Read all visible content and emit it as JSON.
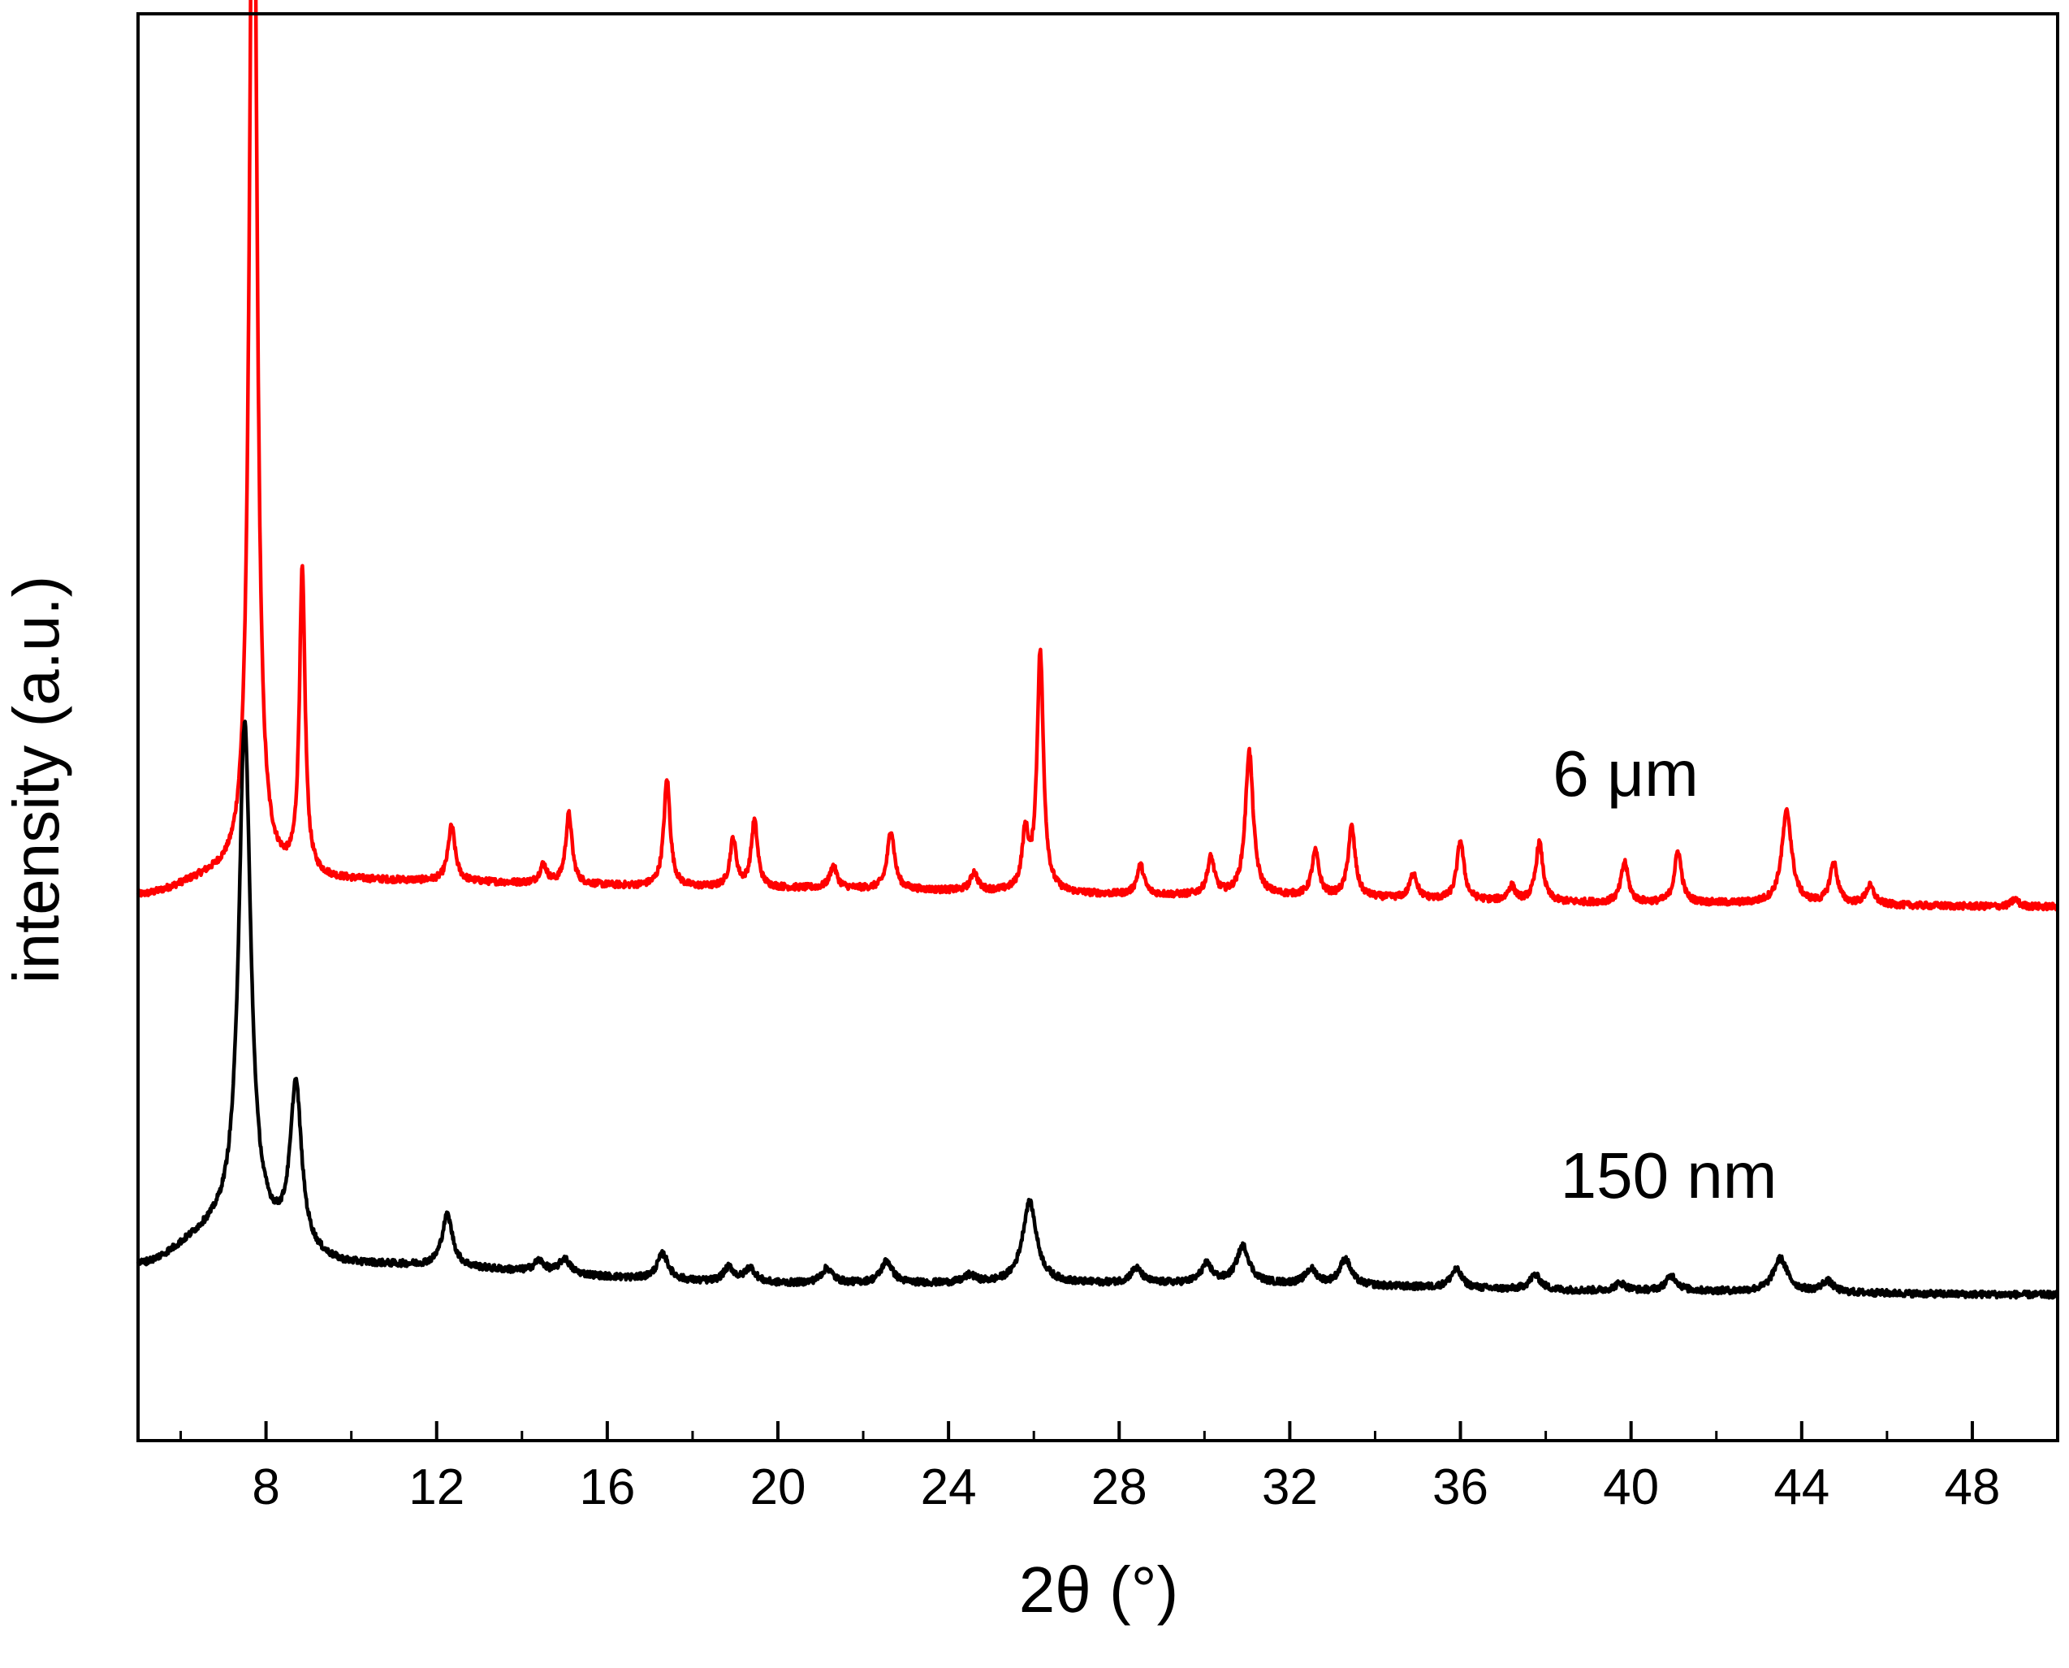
{
  "chart_data": {
    "type": "line",
    "title": "",
    "xlabel": "2θ (°)",
    "ylabel": "intensity (a.u.)",
    "xlim": [
      5,
      50
    ],
    "x_ticks": [
      8,
      12,
      16,
      20,
      24,
      28,
      32,
      36,
      40,
      44,
      48
    ],
    "y_ticks": [],
    "grid": false,
    "legend": "none",
    "annotations": [
      {
        "text": "6 μm",
        "series": "6 μm"
      },
      {
        "text": "150 nm",
        "series": "150 nm"
      }
    ],
    "series": [
      {
        "name": "6 μm",
        "color": "#ff0000",
        "offset": 1.0,
        "baseline": [
          [
            5,
            0.0
          ],
          [
            7,
            0.05
          ],
          [
            10,
            0.04
          ],
          [
            20,
            0.02
          ],
          [
            30,
            0.0
          ],
          [
            40,
            -0.02
          ],
          [
            50,
            -0.03
          ]
        ],
        "peaks": [
          {
            "x": 7.7,
            "h": 3.28,
            "w": 0.1
          },
          {
            "x": 8.85,
            "h": 0.82,
            "w": 0.08
          },
          {
            "x": 12.35,
            "h": 0.15,
            "w": 0.1
          },
          {
            "x": 14.5,
            "h": 0.05,
            "w": 0.1
          },
          {
            "x": 15.1,
            "h": 0.19,
            "w": 0.09
          },
          {
            "x": 17.4,
            "h": 0.29,
            "w": 0.09
          },
          {
            "x": 18.95,
            "h": 0.13,
            "w": 0.09
          },
          {
            "x": 19.45,
            "h": 0.18,
            "w": 0.09
          },
          {
            "x": 21.3,
            "h": 0.06,
            "w": 0.1
          },
          {
            "x": 22.65,
            "h": 0.16,
            "w": 0.1
          },
          {
            "x": 24.6,
            "h": 0.05,
            "w": 0.1
          },
          {
            "x": 25.8,
            "h": 0.15,
            "w": 0.09
          },
          {
            "x": 26.15,
            "h": 0.65,
            "w": 0.09
          },
          {
            "x": 28.5,
            "h": 0.08,
            "w": 0.1
          },
          {
            "x": 30.15,
            "h": 0.1,
            "w": 0.1
          },
          {
            "x": 31.05,
            "h": 0.39,
            "w": 0.11
          },
          {
            "x": 32.6,
            "h": 0.12,
            "w": 0.1
          },
          {
            "x": 33.45,
            "h": 0.19,
            "w": 0.1
          },
          {
            "x": 34.9,
            "h": 0.07,
            "w": 0.1
          },
          {
            "x": 36.0,
            "h": 0.16,
            "w": 0.1
          },
          {
            "x": 37.2,
            "h": 0.04,
            "w": 0.1
          },
          {
            "x": 37.85,
            "h": 0.16,
            "w": 0.1
          },
          {
            "x": 39.85,
            "h": 0.11,
            "w": 0.1
          },
          {
            "x": 41.1,
            "h": 0.14,
            "w": 0.1
          },
          {
            "x": 43.65,
            "h": 0.25,
            "w": 0.14
          },
          {
            "x": 44.75,
            "h": 0.11,
            "w": 0.11
          },
          {
            "x": 45.6,
            "h": 0.05,
            "w": 0.12
          },
          {
            "x": 49.0,
            "h": 0.02,
            "w": 0.1
          }
        ]
      },
      {
        "name": "150 nm",
        "color": "#000000",
        "offset": 0.0,
        "baseline": [
          [
            5,
            0.0
          ],
          [
            7,
            0.09
          ],
          [
            10,
            0.0
          ],
          [
            20,
            -0.05
          ],
          [
            30,
            -0.05
          ],
          [
            40,
            -0.07
          ],
          [
            50,
            -0.08
          ]
        ],
        "peaks": [
          {
            "x": 7.5,
            "h": 1.38,
            "w": 0.17
          },
          {
            "x": 8.7,
            "h": 0.44,
            "w": 0.16
          },
          {
            "x": 12.25,
            "h": 0.14,
            "w": 0.15
          },
          {
            "x": 14.4,
            "h": 0.03,
            "w": 0.15
          },
          {
            "x": 15.0,
            "h": 0.04,
            "w": 0.15
          },
          {
            "x": 17.3,
            "h": 0.07,
            "w": 0.16
          },
          {
            "x": 18.85,
            "h": 0.04,
            "w": 0.15
          },
          {
            "x": 19.35,
            "h": 0.04,
            "w": 0.15
          },
          {
            "x": 21.15,
            "h": 0.04,
            "w": 0.16
          },
          {
            "x": 22.55,
            "h": 0.06,
            "w": 0.16
          },
          {
            "x": 24.5,
            "h": 0.02,
            "w": 0.16
          },
          {
            "x": 25.9,
            "h": 0.22,
            "w": 0.2
          },
          {
            "x": 28.4,
            "h": 0.04,
            "w": 0.16
          },
          {
            "x": 30.05,
            "h": 0.05,
            "w": 0.16
          },
          {
            "x": 30.9,
            "h": 0.1,
            "w": 0.18
          },
          {
            "x": 32.5,
            "h": 0.04,
            "w": 0.16
          },
          {
            "x": 33.3,
            "h": 0.07,
            "w": 0.16
          },
          {
            "x": 35.9,
            "h": 0.05,
            "w": 0.16
          },
          {
            "x": 37.75,
            "h": 0.04,
            "w": 0.16
          },
          {
            "x": 39.75,
            "h": 0.02,
            "w": 0.16
          },
          {
            "x": 40.95,
            "h": 0.04,
            "w": 0.16
          },
          {
            "x": 43.5,
            "h": 0.09,
            "w": 0.2
          },
          {
            "x": 44.6,
            "h": 0.03,
            "w": 0.16
          }
        ]
      }
    ]
  }
}
